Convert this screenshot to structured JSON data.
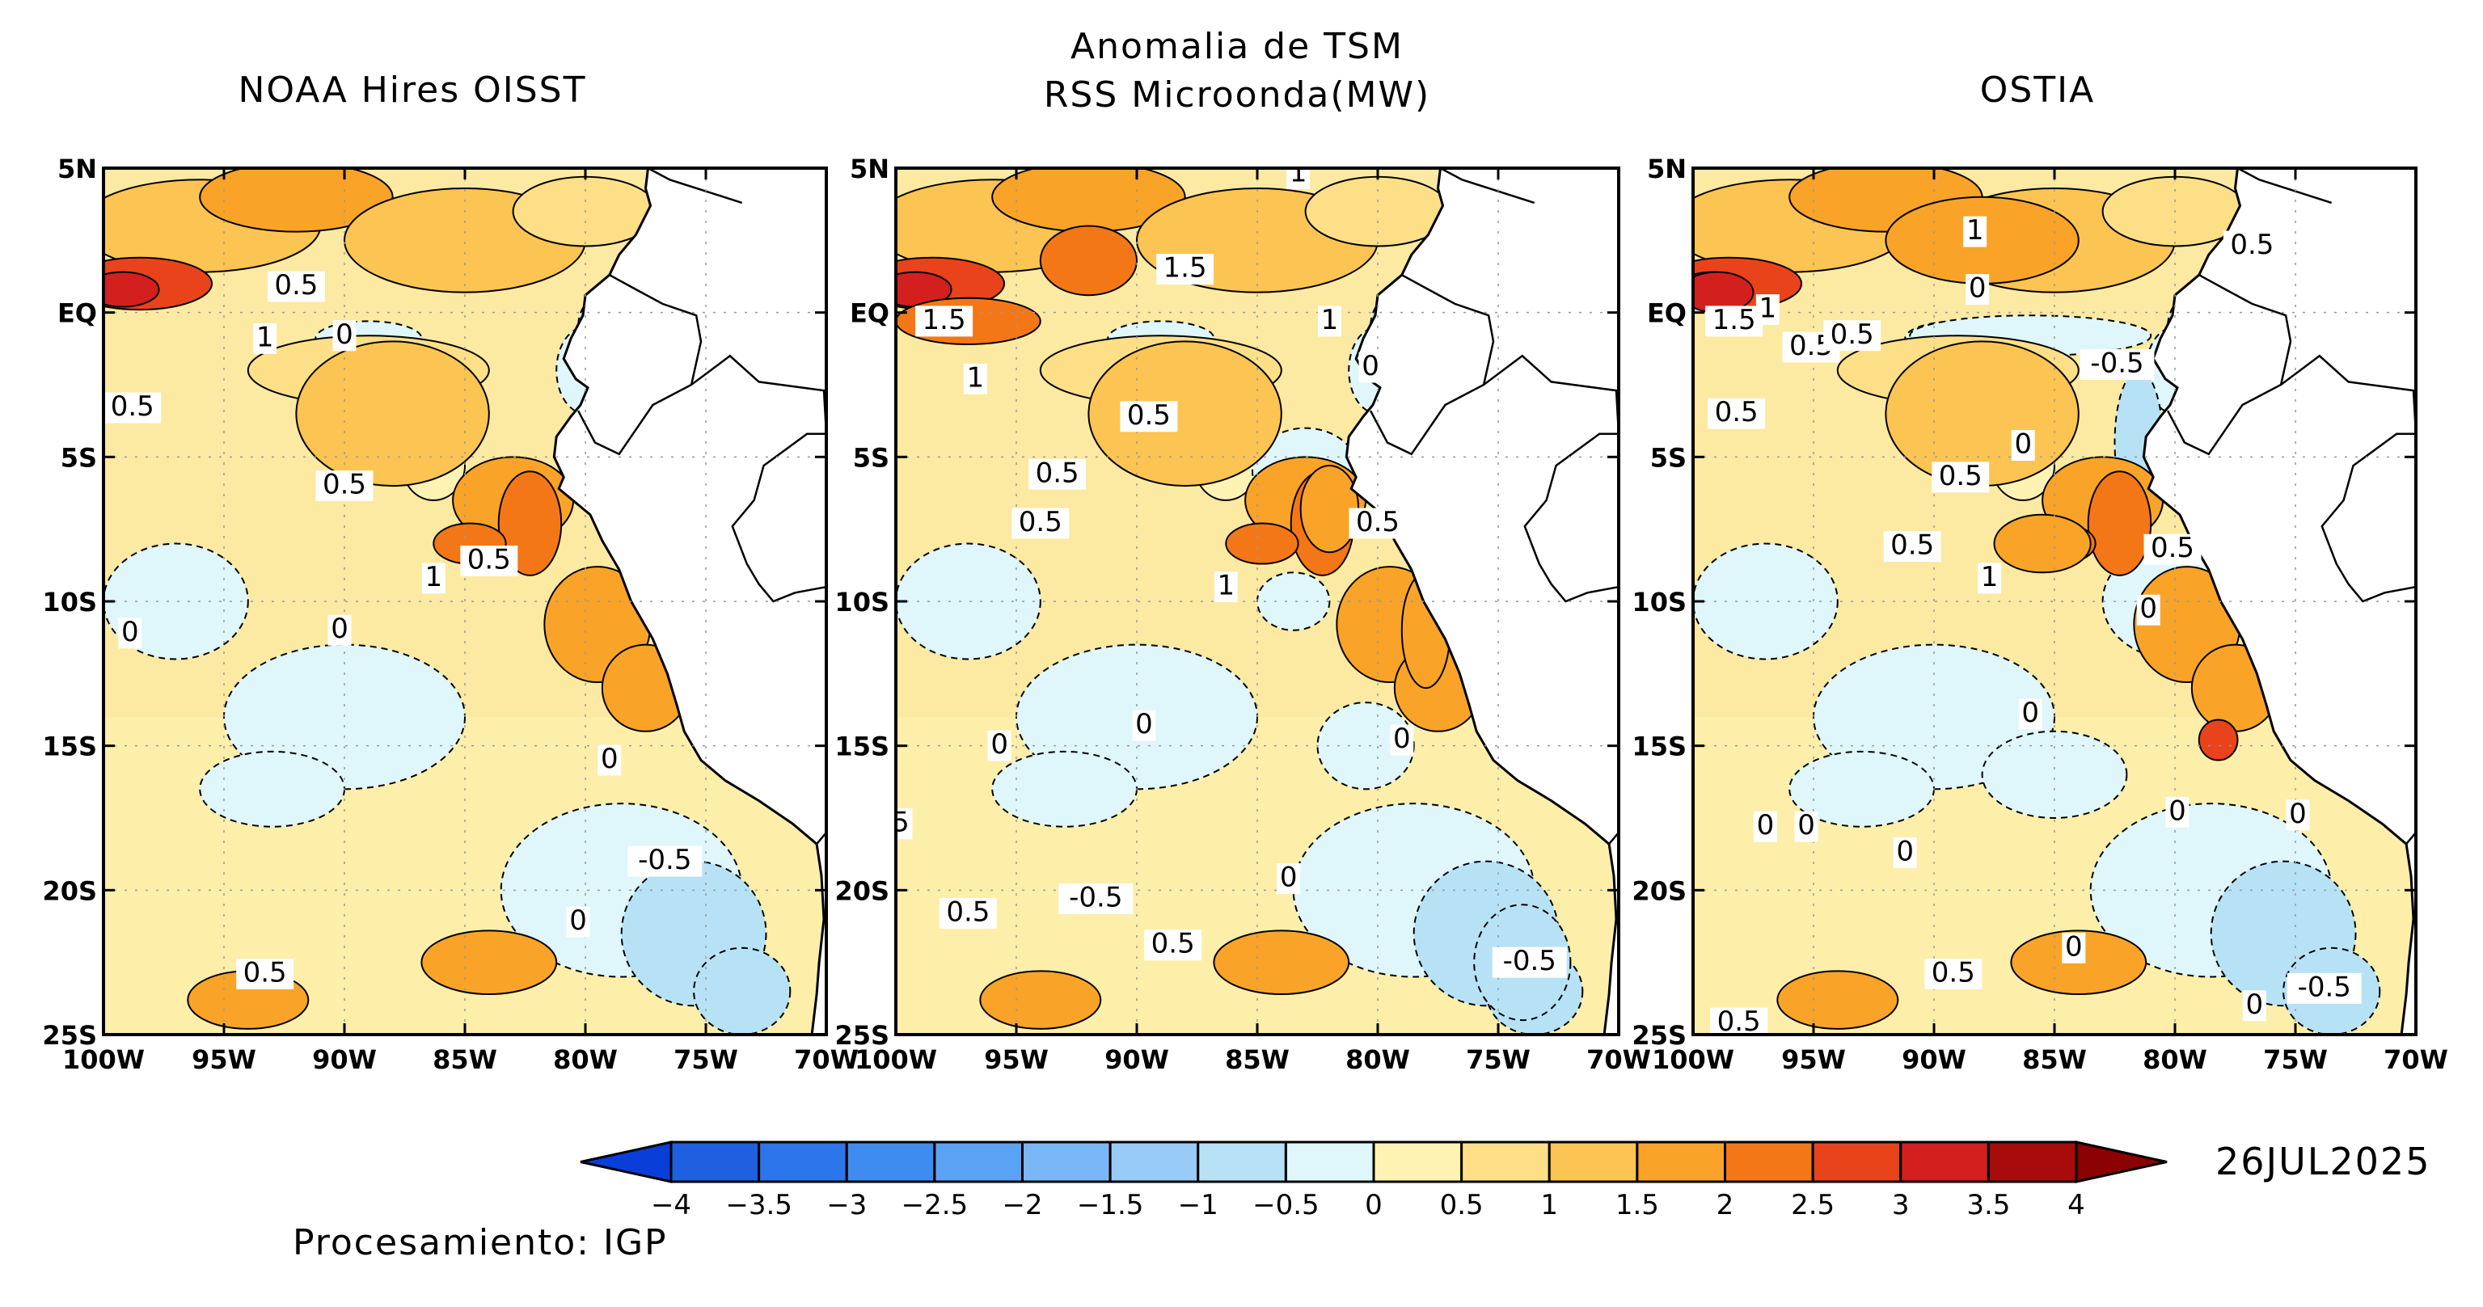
{
  "main_title": [
    "Anomalia de TSM",
    "RSS Microonda(MW)"
  ],
  "panels": [
    {
      "title": "NOAA Hires OISST",
      "contour_labels": [
        {
          "text": "0.5",
          "lon": -92.0,
          "lat": 0.9
        },
        {
          "text": "1",
          "lon": -93.3,
          "lat": -0.9
        },
        {
          "text": "0",
          "lon": -90.0,
          "lat": -0.8
        },
        {
          "text": "0.5",
          "lon": -98.8,
          "lat": -3.3
        },
        {
          "text": "0.5",
          "lon": -90.0,
          "lat": -6.0
        },
        {
          "text": "0.5",
          "lon": -84.0,
          "lat": -8.6
        },
        {
          "text": "1",
          "lon": -86.3,
          "lat": -9.2
        },
        {
          "text": "0",
          "lon": -98.9,
          "lat": -11.1
        },
        {
          "text": "0",
          "lon": -90.2,
          "lat": -11.0
        },
        {
          "text": "0",
          "lon": -79.0,
          "lat": -15.5
        },
        {
          "text": "-0.5",
          "lon": -76.7,
          "lat": -19.0
        },
        {
          "text": "0",
          "lon": -80.3,
          "lat": -21.1
        },
        {
          "text": "0.5",
          "lon": -93.3,
          "lat": -22.9
        }
      ]
    },
    {
      "title": "",
      "contour_labels": [
        {
          "text": "1.5",
          "lon": -88.0,
          "lat": 1.5
        },
        {
          "text": "1.5",
          "lon": -98.0,
          "lat": -0.3
        },
        {
          "text": "1",
          "lon": -82.0,
          "lat": -0.3
        },
        {
          "text": "1",
          "lon": -96.7,
          "lat": -2.3
        },
        {
          "text": "0",
          "lon": -80.3,
          "lat": -1.9
        },
        {
          "text": "0.5",
          "lon": -89.5,
          "lat": -3.6
        },
        {
          "text": "0.5",
          "lon": -93.3,
          "lat": -5.6
        },
        {
          "text": "0.5",
          "lon": -94.0,
          "lat": -7.3
        },
        {
          "text": "0.5",
          "lon": -80.0,
          "lat": -7.3
        },
        {
          "text": "1",
          "lon": -86.3,
          "lat": -9.5
        },
        {
          "text": "0",
          "lon": -89.7,
          "lat": -14.3
        },
        {
          "text": "0",
          "lon": -95.7,
          "lat": -15.0
        },
        {
          "text": "0",
          "lon": -79.0,
          "lat": -14.8
        },
        {
          "text": "5",
          "lon": -99.8,
          "lat": -17.7
        },
        {
          "text": "0",
          "lon": -83.7,
          "lat": -19.6
        },
        {
          "text": "-0.5",
          "lon": -91.7,
          "lat": -20.3
        },
        {
          "text": "0.5",
          "lon": -97.0,
          "lat": -20.8
        },
        {
          "text": "0.5",
          "lon": -88.5,
          "lat": -21.9
        },
        {
          "text": "-0.5",
          "lon": -73.7,
          "lat": -22.5
        },
        {
          "text": "1",
          "lon": -83.3,
          "lat": 4.8
        }
      ]
    },
    {
      "title": "OSTIA",
      "contour_labels": [
        {
          "text": "1",
          "lon": -88.3,
          "lat": 2.8
        },
        {
          "text": "0.5",
          "lon": -76.8,
          "lat": 2.3
        },
        {
          "text": "0",
          "lon": -88.2,
          "lat": 0.8
        },
        {
          "text": "1.5",
          "lon": -98.3,
          "lat": -0.3
        },
        {
          "text": "1",
          "lon": -96.9,
          "lat": 0.1
        },
        {
          "text": "0.5",
          "lon": -95.1,
          "lat": -1.2
        },
        {
          "text": "0.5",
          "lon": -93.4,
          "lat": -0.8
        },
        {
          "text": "-0.5",
          "lon": -82.4,
          "lat": -1.8
        },
        {
          "text": "0.5",
          "lon": -98.2,
          "lat": -3.5
        },
        {
          "text": "0",
          "lon": -86.3,
          "lat": -4.6
        },
        {
          "text": "0.5",
          "lon": -88.9,
          "lat": -5.7
        },
        {
          "text": "0.5",
          "lon": -90.9,
          "lat": -8.1
        },
        {
          "text": "1",
          "lon": -87.7,
          "lat": -9.2
        },
        {
          "text": "0.5",
          "lon": -80.1,
          "lat": -8.2
        },
        {
          "text": "0",
          "lon": -81.1,
          "lat": -10.3
        },
        {
          "text": "0",
          "lon": -86.0,
          "lat": -13.9
        },
        {
          "text": "0",
          "lon": -97.0,
          "lat": -17.8
        },
        {
          "text": "0",
          "lon": -95.3,
          "lat": -17.8
        },
        {
          "text": "0",
          "lon": -91.2,
          "lat": -18.7
        },
        {
          "text": "0",
          "lon": -79.9,
          "lat": -17.3
        },
        {
          "text": "0",
          "lon": -74.9,
          "lat": -17.4
        },
        {
          "text": "0.5",
          "lon": -89.2,
          "lat": -22.9
        },
        {
          "text": "0",
          "lon": -84.2,
          "lat": -22.0
        },
        {
          "text": "-0.5",
          "lon": -73.8,
          "lat": -23.4
        },
        {
          "text": "0",
          "lon": -76.7,
          "lat": -24.0
        },
        {
          "text": "0.5",
          "lon": -98.1,
          "lat": -24.6
        }
      ]
    }
  ],
  "map_axes": {
    "lon_ticks": [
      "100W",
      "95W",
      "90W",
      "85W",
      "80W",
      "75W",
      "70W"
    ],
    "lat_ticks": [
      "5N",
      "EQ",
      "5S",
      "10S",
      "15S",
      "20S",
      "25S"
    ],
    "lon_range": [
      -100,
      -70
    ],
    "lat_range": [
      -25,
      5
    ]
  },
  "colorbar": {
    "labels": [
      "-4",
      "-3.5",
      "-3",
      "-2.5",
      "-2",
      "-1.5",
      "-1",
      "-0.5",
      "0",
      "0.5",
      "1",
      "1.5",
      "2",
      "2.5",
      "3",
      "3.5",
      "4"
    ],
    "colors": [
      "#1e60e0",
      "#2c75ea",
      "#3f8cf0",
      "#5aa2f3",
      "#79b7f6",
      "#98cbf7",
      "#b7e2f6",
      "#dff6fb",
      "#fff3b4",
      "#fddf88",
      "#fcc452",
      "#f9a428",
      "#f47717",
      "#e8431b",
      "#d41f1f",
      "#a80b0b"
    ],
    "under_color": "#0a3ed9",
    "over_color": "#8b0000"
  },
  "date": "26JUL2025",
  "credit": "Procesamiento: IGP",
  "colors": {
    "land": "#ffffff",
    "coast": "#000000",
    "background_sea": "#fce9a2"
  }
}
